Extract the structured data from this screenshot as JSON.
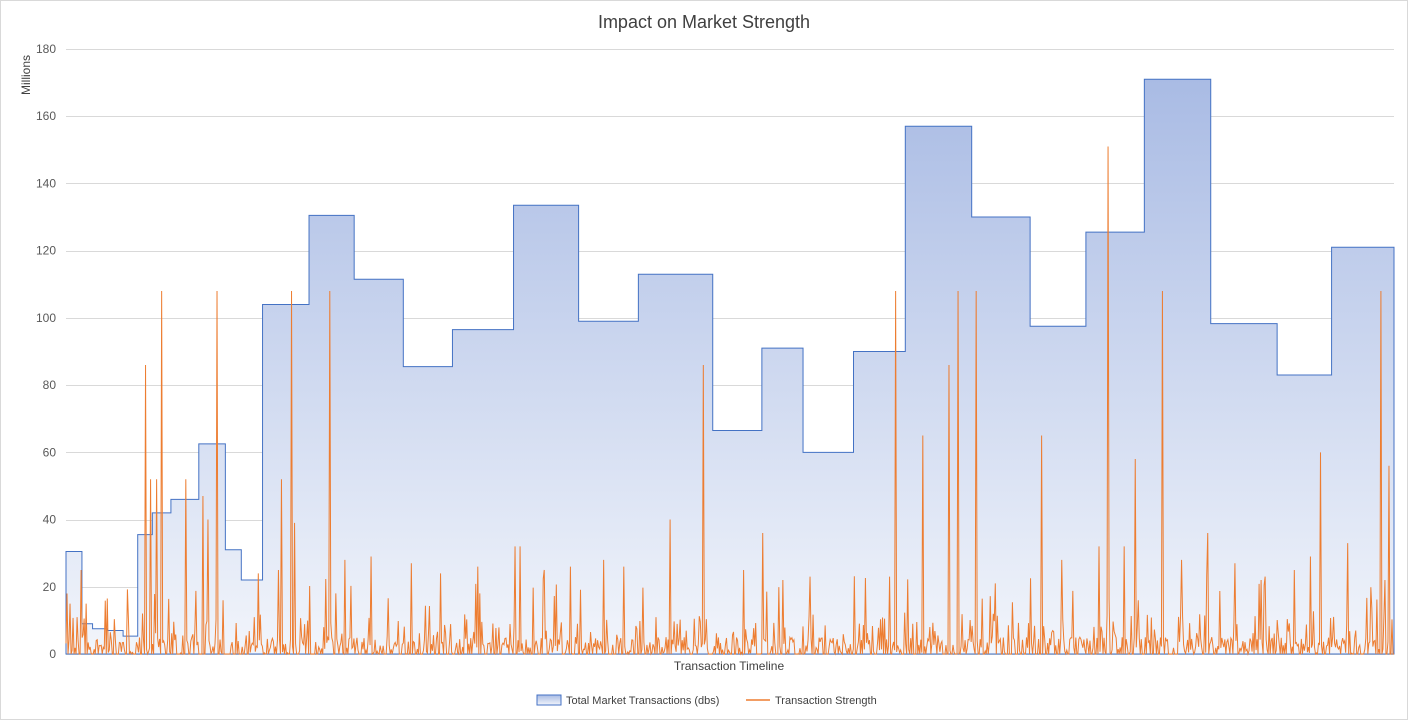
{
  "chart_data": {
    "type": "area",
    "title": "Impact on Market Strength",
    "xlabel": "Transaction Timeline",
    "ylabel": "Millions",
    "ylim": [
      0,
      180
    ],
    "yticks": [
      0,
      20,
      40,
      60,
      80,
      100,
      120,
      140,
      160,
      180
    ],
    "grid": true,
    "legend_position": "bottom",
    "x_range": [
      0,
      1000
    ],
    "colors": {
      "area_top": "#a9bbe4",
      "area_bottom": "#f2f5fb",
      "area_line": "#4472c4",
      "strength_line": "#ed7d31"
    },
    "series": [
      {
        "name": "Total Market Transactions (dbs)",
        "kind": "step-area",
        "steps": [
          {
            "x0": 0,
            "x1": 12,
            "y": 30.5
          },
          {
            "x0": 12,
            "x1": 20,
            "y": 9
          },
          {
            "x0": 20,
            "x1": 31,
            "y": 7.5
          },
          {
            "x0": 31,
            "x1": 43,
            "y": 7
          },
          {
            "x0": 43,
            "x1": 54,
            "y": 5.3
          },
          {
            "x0": 54,
            "x1": 65,
            "y": 35.5
          },
          {
            "x0": 65,
            "x1": 79,
            "y": 42
          },
          {
            "x0": 79,
            "x1": 100,
            "y": 46
          },
          {
            "x0": 100,
            "x1": 120,
            "y": 62.5
          },
          {
            "x0": 120,
            "x1": 132,
            "y": 31
          },
          {
            "x0": 132,
            "x1": 148,
            "y": 22
          },
          {
            "x0": 148,
            "x1": 183,
            "y": 104
          },
          {
            "x0": 183,
            "x1": 217,
            "y": 130.5
          },
          {
            "x0": 217,
            "x1": 254,
            "y": 111.5
          },
          {
            "x0": 254,
            "x1": 291,
            "y": 85.5
          },
          {
            "x0": 291,
            "x1": 337,
            "y": 96.5
          },
          {
            "x0": 337,
            "x1": 386,
            "y": 133.5
          },
          {
            "x0": 386,
            "x1": 431,
            "y": 99
          },
          {
            "x0": 431,
            "x1": 487,
            "y": 113
          },
          {
            "x0": 487,
            "x1": 524,
            "y": 66.5
          },
          {
            "x0": 524,
            "x1": 555,
            "y": 91
          },
          {
            "x0": 555,
            "x1": 593,
            "y": 60
          },
          {
            "x0": 593,
            "x1": 632,
            "y": 90
          },
          {
            "x0": 632,
            "x1": 682,
            "y": 157
          },
          {
            "x0": 682,
            "x1": 726,
            "y": 130
          },
          {
            "x0": 726,
            "x1": 768,
            "y": 97.5
          },
          {
            "x0": 768,
            "x1": 812,
            "y": 125.5
          },
          {
            "x0": 812,
            "x1": 862,
            "y": 171
          },
          {
            "x0": 862,
            "x1": 912,
            "y": 98.3
          },
          {
            "x0": 912,
            "x1": 953,
            "y": 83
          },
          {
            "x0": 953,
            "x1": 1000,
            "y": 121
          }
        ]
      },
      {
        "name": "Transaction Strength",
        "kind": "line",
        "base_seed": 12345,
        "spikes": [
          {
            "x": 1,
            "y": 18
          },
          {
            "x": 3,
            "y": 15
          },
          {
            "x": 11,
            "y": 25
          },
          {
            "x": 15,
            "y": 15
          },
          {
            "x": 31,
            "y": 16.5
          },
          {
            "x": 60,
            "y": 86
          },
          {
            "x": 64,
            "y": 52
          },
          {
            "x": 68,
            "y": 52
          },
          {
            "x": 72,
            "y": 108
          },
          {
            "x": 90,
            "y": 52
          },
          {
            "x": 103,
            "y": 47
          },
          {
            "x": 107,
            "y": 40
          },
          {
            "x": 114,
            "y": 108
          },
          {
            "x": 118,
            "y": 16
          },
          {
            "x": 145,
            "y": 24
          },
          {
            "x": 160,
            "y": 25
          },
          {
            "x": 162,
            "y": 52
          },
          {
            "x": 170,
            "y": 108
          },
          {
            "x": 172,
            "y": 39
          },
          {
            "x": 199,
            "y": 108
          },
          {
            "x": 210,
            "y": 28
          },
          {
            "x": 230,
            "y": 29
          },
          {
            "x": 260,
            "y": 27
          },
          {
            "x": 282,
            "y": 24
          },
          {
            "x": 310,
            "y": 26
          },
          {
            "x": 338,
            "y": 32
          },
          {
            "x": 342,
            "y": 32
          },
          {
            "x": 360,
            "y": 25
          },
          {
            "x": 380,
            "y": 26
          },
          {
            "x": 405,
            "y": 28
          },
          {
            "x": 420,
            "y": 26
          },
          {
            "x": 455,
            "y": 40
          },
          {
            "x": 480,
            "y": 86
          },
          {
            "x": 510,
            "y": 25
          },
          {
            "x": 525,
            "y": 36
          },
          {
            "x": 540,
            "y": 22
          },
          {
            "x": 560,
            "y": 23
          },
          {
            "x": 620,
            "y": 23
          },
          {
            "x": 625,
            "y": 108
          },
          {
            "x": 645,
            "y": 65
          },
          {
            "x": 665,
            "y": 86
          },
          {
            "x": 672,
            "y": 108
          },
          {
            "x": 685,
            "y": 108
          },
          {
            "x": 700,
            "y": 21
          },
          {
            "x": 735,
            "y": 65
          },
          {
            "x": 750,
            "y": 28
          },
          {
            "x": 778,
            "y": 32
          },
          {
            "x": 785,
            "y": 151
          },
          {
            "x": 797,
            "y": 32
          },
          {
            "x": 805,
            "y": 58
          },
          {
            "x": 826,
            "y": 108
          },
          {
            "x": 840,
            "y": 28
          },
          {
            "x": 860,
            "y": 36
          },
          {
            "x": 880,
            "y": 27
          },
          {
            "x": 900,
            "y": 22
          },
          {
            "x": 925,
            "y": 25
          },
          {
            "x": 937,
            "y": 29
          },
          {
            "x": 945,
            "y": 60
          },
          {
            "x": 965,
            "y": 33
          },
          {
            "x": 990,
            "y": 108
          },
          {
            "x": 993,
            "y": 22
          },
          {
            "x": 996,
            "y": 56
          }
        ]
      }
    ]
  }
}
